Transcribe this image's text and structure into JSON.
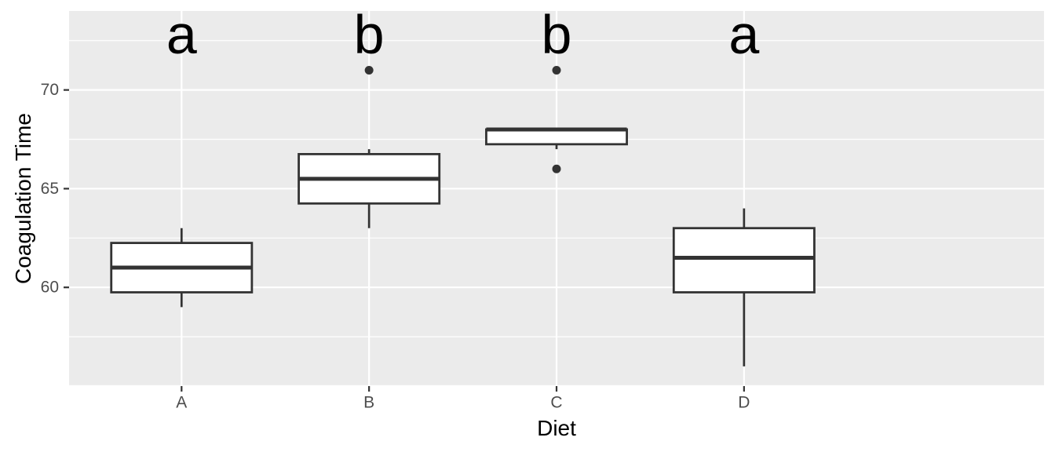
{
  "figure": {
    "kind": "ggplot-boxplot",
    "xlabel": "Diet",
    "ylabel": "Coagulation Time"
  },
  "chart_data": {
    "type": "boxplot",
    "title": "",
    "xlabel": "Diet",
    "ylabel": "Coagulation Time",
    "categories": [
      "A",
      "B",
      "C",
      "D"
    ],
    "significance_letters": [
      "a",
      "b",
      "b",
      "a"
    ],
    "groups": [
      {
        "category": "A",
        "letter": "a",
        "whisker_low": 59,
        "q1": 59.75,
        "median": 61,
        "q3": 62.25,
        "whisker_high": 63,
        "outliers": []
      },
      {
        "category": "B",
        "letter": "b",
        "whisker_low": 63,
        "q1": 64.25,
        "median": 65.5,
        "q3": 66.75,
        "whisker_high": 67,
        "outliers": [
          71
        ]
      },
      {
        "category": "C",
        "letter": "b",
        "whisker_low": 67,
        "q1": 67.25,
        "median": 68,
        "q3": 68,
        "whisker_high": 68,
        "outliers": [
          66,
          71
        ]
      },
      {
        "category": "D",
        "letter": "a",
        "whisker_low": 56,
        "q1": 59.75,
        "median": 61.5,
        "q3": 63,
        "whisker_high": 64,
        "outliers": []
      }
    ],
    "ylim": [
      55,
      74
    ],
    "yticks_labeled": [
      60,
      65,
      70
    ],
    "ytick_label_texts": [
      "60",
      "65",
      "70"
    ],
    "ygrid_major": [
      55,
      60,
      65,
      70
    ],
    "ygrid_minor": [
      57.5,
      62.5,
      67.5,
      72.5
    ],
    "letter_y_value": 72.8,
    "grid": true,
    "legend": false,
    "layout_hints": {
      "x_axis_type": "discrete",
      "box_width_units": 0.75,
      "discrete_expand": 0.6
    },
    "colors": {
      "panel_background": "#EBEBEB",
      "gridline": "#FFFFFF",
      "box_stroke": "#333333",
      "box_fill": "#FFFFFF",
      "median_stroke": "#333333",
      "outlier": "#333333",
      "tick_mark": "#333333",
      "axis_text": "#4D4D4D",
      "axis_title": "#000000",
      "letter_color": "#000000"
    }
  }
}
